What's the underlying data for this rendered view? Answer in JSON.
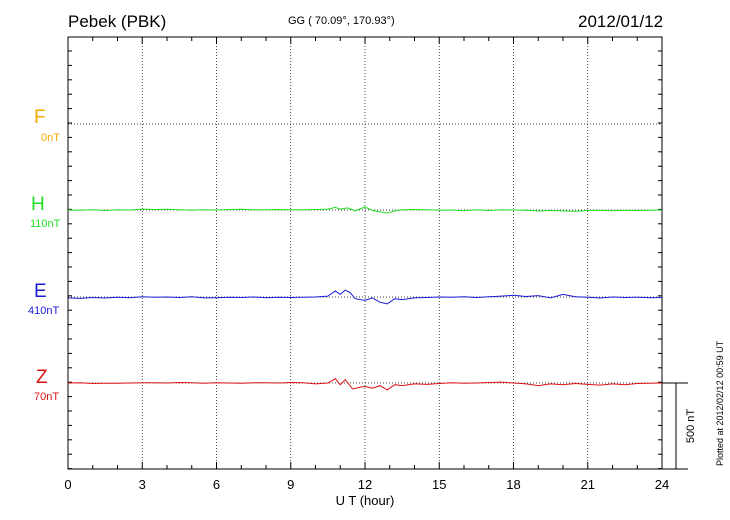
{
  "header": {
    "station": "Pebek (PBK)",
    "coords": "GG ( 70.09°, 170.93°)",
    "date": "2012/01/12"
  },
  "footer": {
    "plotted": "Plotted at 2012/02/12 00:59 UT"
  },
  "chart_data": {
    "type": "line",
    "xlabel": "U T (hour)",
    "xlim": [
      0,
      24
    ],
    "xticks": [
      0,
      3,
      6,
      9,
      12,
      15,
      18,
      21,
      24
    ],
    "grid": true,
    "scale_bar": {
      "value": 500,
      "label": "500 nT"
    },
    "colors": {
      "F": "#f5a800",
      "H": "#22dd22",
      "E": "#1a1ad6",
      "Z": "#dd1111"
    },
    "series": [
      {
        "name": "F",
        "offset_label": "0nT",
        "values": []
      },
      {
        "name": "H",
        "offset_label": "110nT",
        "x": [
          0,
          0.5,
          1,
          1.5,
          2,
          2.5,
          3,
          3.5,
          4,
          4.5,
          5,
          5.5,
          6,
          6.5,
          7,
          7.5,
          8,
          8.5,
          9,
          9.5,
          10,
          10.5,
          10.8,
          11,
          11.3,
          11.6,
          12,
          12.3,
          12.6,
          12.9,
          13.2,
          13.5,
          14,
          14.5,
          15,
          15.5,
          16,
          16.5,
          17,
          17.5,
          18,
          18.5,
          19,
          19.5,
          20,
          20.5,
          21,
          21.5,
          22,
          22.5,
          23,
          23.5,
          24
        ],
        "values": [
          0,
          -2,
          1,
          -3,
          2,
          0,
          5,
          3,
          4,
          2,
          -1,
          2,
          0,
          3,
          4,
          2,
          1,
          3,
          2,
          1,
          3,
          5,
          15,
          5,
          12,
          -5,
          18,
          -3,
          -10,
          -18,
          -5,
          2,
          3,
          1,
          -2,
          0,
          -4,
          2,
          -3,
          1,
          0,
          -2,
          -6,
          -3,
          -5,
          -8,
          -3,
          -2,
          -4,
          -1,
          -3,
          -2,
          0
        ]
      },
      {
        "name": "E",
        "offset_label": "410nT",
        "x": [
          0,
          0.5,
          1,
          1.5,
          2,
          2.5,
          3,
          3.5,
          4,
          4.5,
          5,
          5.5,
          6,
          6.5,
          7,
          7.5,
          8,
          8.5,
          9,
          9.5,
          10,
          10.5,
          10.8,
          11,
          11.2,
          11.4,
          11.6,
          12,
          12.3,
          12.6,
          12.9,
          13.2,
          13.5,
          14,
          14.5,
          15,
          15.5,
          16,
          16.5,
          17,
          17.5,
          18,
          18.5,
          19,
          19.5,
          20,
          20.5,
          21,
          21.5,
          22,
          22.5,
          23,
          23.5,
          24
        ],
        "values": [
          -5,
          -8,
          -3,
          -6,
          -2,
          -4,
          2,
          -1,
          0,
          -3,
          2,
          -5,
          -4,
          -2,
          -3,
          0,
          -4,
          -1,
          -3,
          -2,
          0,
          5,
          35,
          15,
          40,
          25,
          -10,
          -20,
          -5,
          -30,
          -40,
          -10,
          -15,
          -5,
          -3,
          0,
          -2,
          1,
          -3,
          2,
          5,
          10,
          3,
          8,
          -5,
          15,
          2,
          -2,
          -6,
          0,
          -3,
          -1,
          -4,
          -3
        ]
      },
      {
        "name": "Z",
        "offset_label": "70nT",
        "x": [
          0,
          0.5,
          1,
          1.5,
          2,
          2.5,
          3,
          3.5,
          4,
          4.5,
          5,
          5.5,
          6,
          6.5,
          7,
          7.5,
          8,
          8.5,
          9,
          9.5,
          10,
          10.5,
          10.8,
          11,
          11.2,
          11.5,
          11.8,
          12,
          12.3,
          12.6,
          12.9,
          13.2,
          13.5,
          14,
          14.5,
          15,
          15.5,
          16,
          16.5,
          17,
          17.5,
          18,
          18.5,
          19,
          19.5,
          20,
          20.5,
          21,
          21.5,
          22,
          22.5,
          23,
          23.5,
          24
        ],
        "values": [
          0,
          2,
          -3,
          -1,
          -2,
          0,
          2,
          1,
          0,
          3,
          2,
          -2,
          1,
          0,
          -1,
          2,
          1,
          0,
          3,
          1,
          -5,
          0,
          25,
          -10,
          20,
          -35,
          -25,
          -20,
          -30,
          -15,
          -40,
          -10,
          -15,
          -5,
          -8,
          -3,
          2,
          -2,
          0,
          3,
          5,
          0,
          -5,
          -15,
          -5,
          -10,
          -3,
          -8,
          -12,
          -5,
          -10,
          -3,
          -2,
          0
        ]
      }
    ]
  }
}
